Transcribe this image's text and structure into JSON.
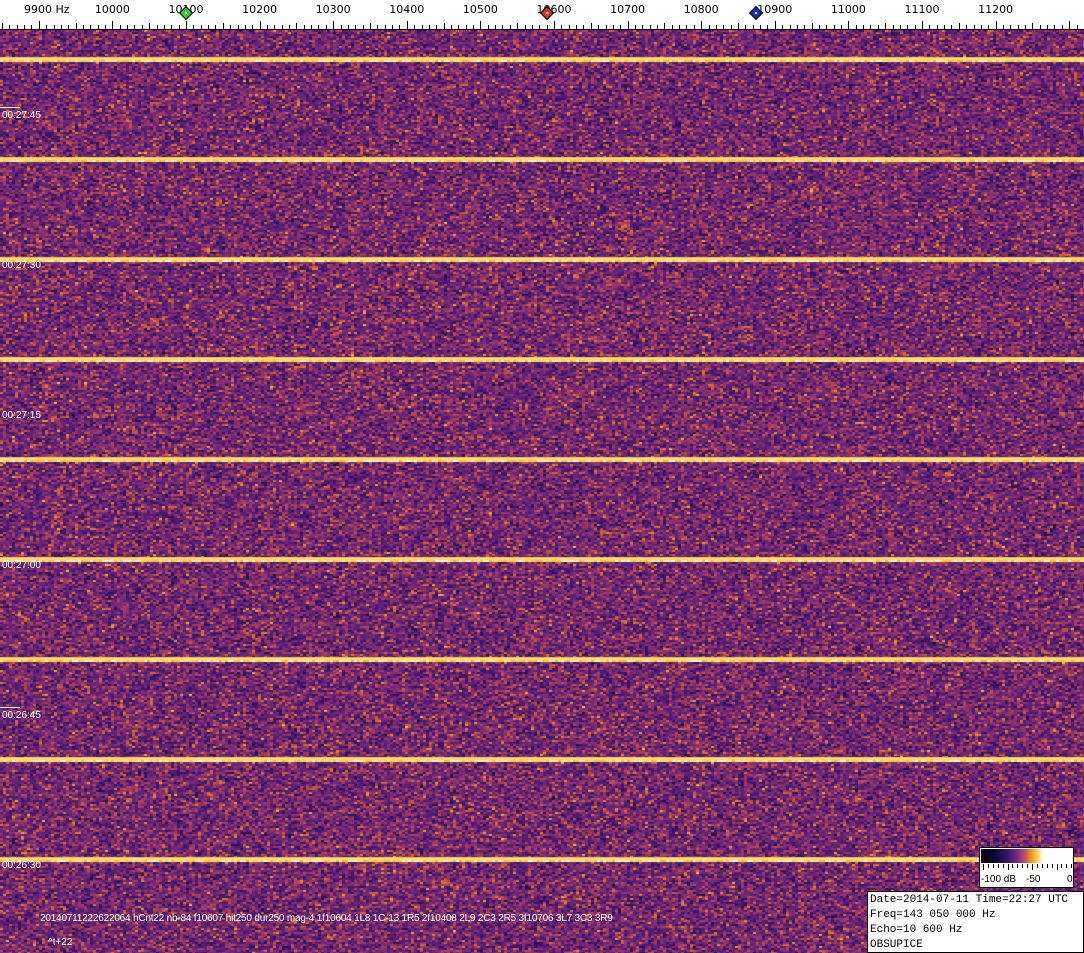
{
  "freq_axis": {
    "unit": "Hz",
    "labels": [
      "9900 Hz",
      "10000",
      "10100",
      "10200",
      "10300",
      "10400",
      "10500",
      "10600",
      "10700",
      "10800",
      "10900",
      "11000",
      "11100",
      "11200"
    ],
    "values": [
      9900,
      10000,
      10100,
      10200,
      10300,
      10400,
      10500,
      10600,
      10700,
      10800,
      10900,
      11000,
      11100,
      11200
    ],
    "markers": [
      {
        "name": "green",
        "freq": 10100,
        "color": "#33cc33"
      },
      {
        "name": "red",
        "freq": 10590,
        "color": "#e03020"
      },
      {
        "name": "blue",
        "freq": 10875,
        "color": "#1030c0"
      }
    ]
  },
  "time_axis": {
    "labels": [
      "00:27:45",
      "00:27:30",
      "00:27:15",
      "00:27:00",
      "00:26:45",
      "00:26:30"
    ]
  },
  "info_line": "20140711222622064 hCnt22 nb-84 f10607 hit250 dur250 mag-4 1f10604 1L8 1C-13 1R5 2f10408 2L9 2C3 2R5 3f10706 3L7 3C3 3R9",
  "t_offset": "^t+22",
  "colorbar": {
    "labels": [
      "-100 dB",
      "-50",
      "0"
    ]
  },
  "station_box": {
    "date_time": "Date=2014-07-11 Time=22:27 UTC",
    "freq": "Freq=143 050 000 Hz",
    "echo": "Echo=10 600 Hz",
    "station": "OBSUPICE"
  }
}
